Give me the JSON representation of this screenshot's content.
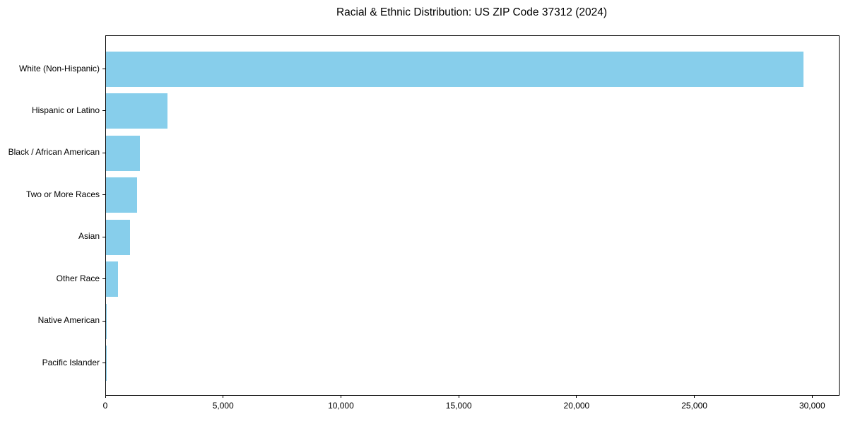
{
  "figure": {
    "background": "#ffffff"
  },
  "chart_data": {
    "type": "bar",
    "orientation": "horizontal",
    "title": "Racial & Ethnic Distribution: US ZIP Code 37312 (2024)",
    "xlabel": "",
    "ylabel": "",
    "categories": [
      "White (Non-Hispanic)",
      "Hispanic or Latino",
      "Black / African American",
      "Two or More Races",
      "Asian",
      "Other Race",
      "Native American",
      "Pacific Islander"
    ],
    "values": [
      29600,
      2600,
      1450,
      1330,
      1020,
      500,
      30,
      10
    ],
    "xlim": [
      0,
      31100
    ],
    "xticks": [
      0,
      5000,
      10000,
      15000,
      20000,
      25000,
      30000
    ],
    "xtick_labels": [
      "0",
      "5,000",
      "10,000",
      "15,000",
      "20,000",
      "25,000",
      "30,000"
    ],
    "bar_color": "#87ceeb",
    "axis_color": "#000000",
    "grid": false,
    "legend": null
  }
}
